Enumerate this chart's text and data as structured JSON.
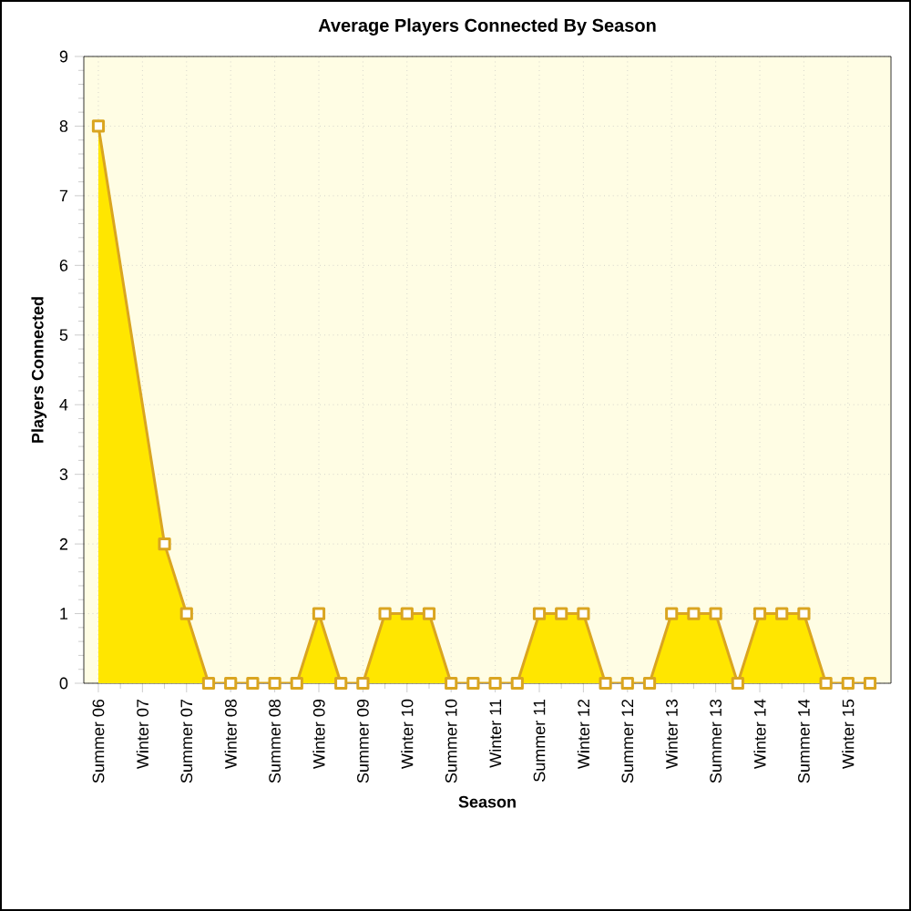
{
  "chart_data": {
    "type": "area",
    "title": "Average Players Connected By Season",
    "xlabel": "Season",
    "ylabel": "Players Connected",
    "categories": [
      "Summer 06",
      null,
      "Winter 07",
      null,
      "Summer 07",
      null,
      "Winter 08",
      null,
      "Summer 08",
      null,
      "Winter 09",
      null,
      "Summer 09",
      null,
      "Winter 10",
      null,
      "Summer 10",
      null,
      "Winter 11",
      null,
      "Summer 11",
      null,
      "Winter 12",
      null,
      "Summer 12",
      null,
      "Winter 13",
      null,
      "Summer 13",
      null,
      "Winter 14",
      null,
      "Summer 14",
      null,
      "Winter 15",
      null
    ],
    "series": [
      {
        "color": "#ffe600",
        "values": [
          8,
          null,
          null,
          2,
          1,
          0,
          0,
          0,
          0,
          0,
          1,
          0,
          0,
          1,
          1,
          1,
          0,
          0,
          0,
          0,
          1,
          1,
          1,
          0,
          0,
          0,
          1,
          1,
          1,
          0,
          1,
          1,
          1,
          0,
          0,
          0
        ]
      }
    ],
    "ylim": [
      0,
      9
    ],
    "yticks": [
      0,
      1,
      2,
      3,
      4,
      5,
      6,
      7,
      8,
      9
    ],
    "grid": true,
    "marker": "square"
  }
}
